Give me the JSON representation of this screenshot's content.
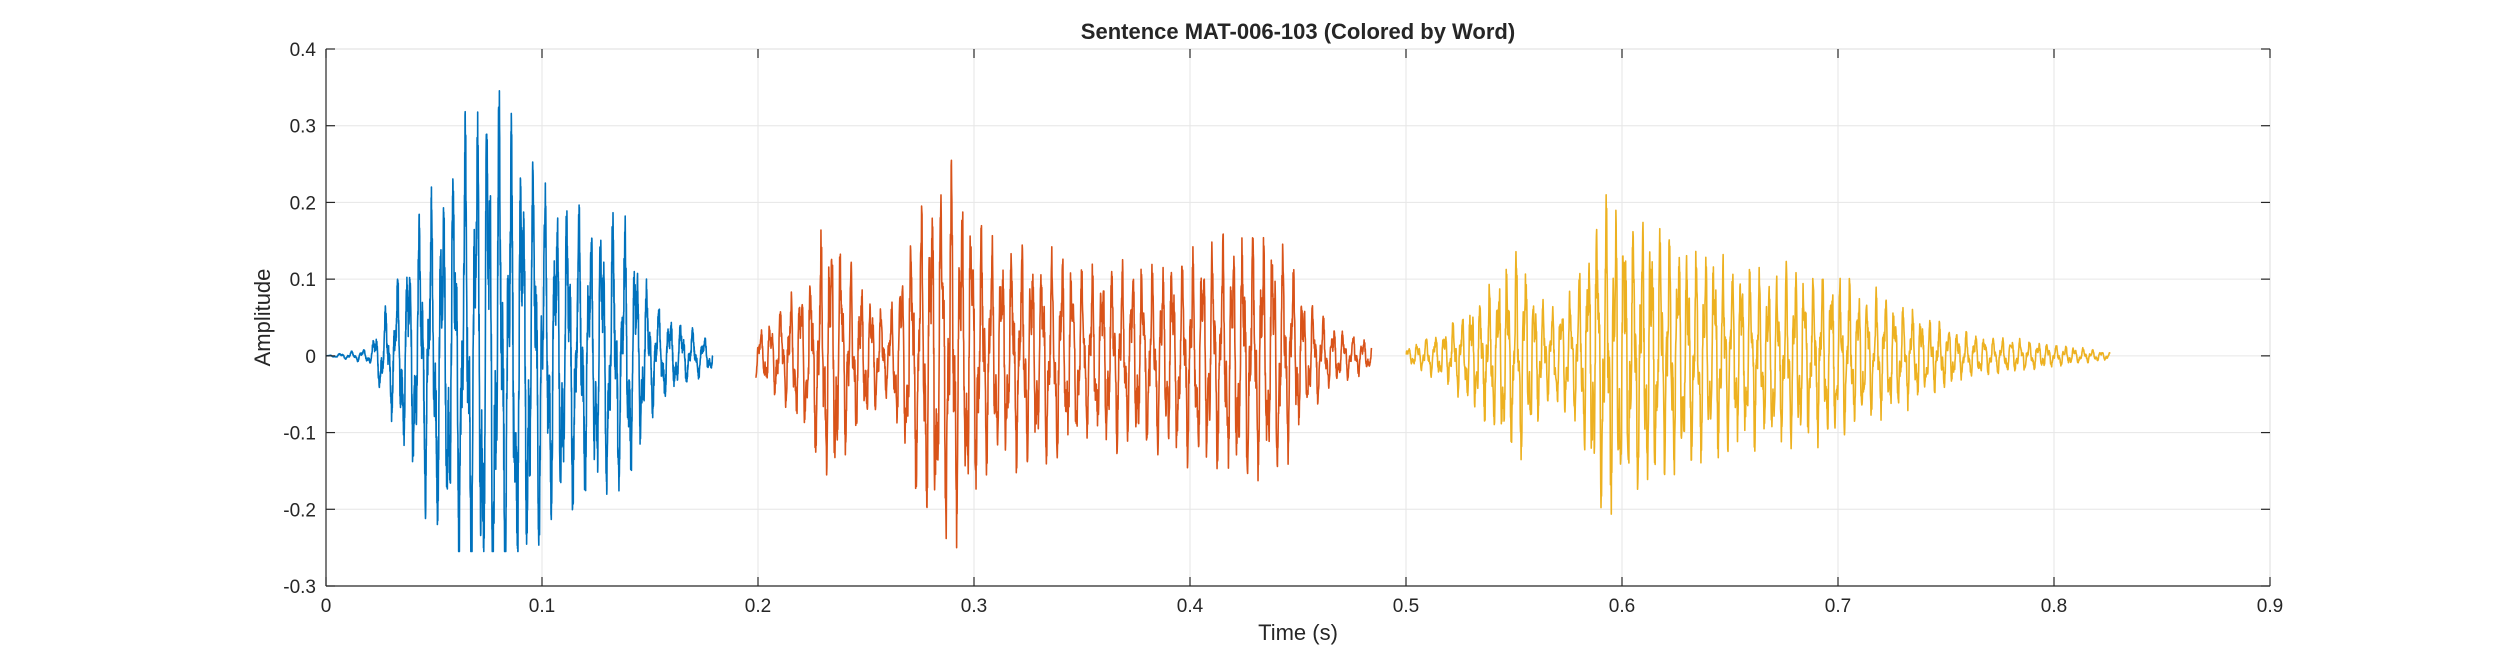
{
  "chart_data": {
    "type": "line",
    "title": "Sentence MAT-006-103 (Colored by Word)",
    "xlabel": "Time (s)",
    "ylabel": "Amplitude",
    "xlim": [
      0,
      0.9
    ],
    "ylim": [
      -0.3,
      0.4
    ],
    "xticks": [
      0,
      0.1,
      0.2,
      0.3,
      0.4,
      0.5,
      0.6,
      0.7,
      0.8,
      0.9
    ],
    "xtick_labels": [
      "0",
      "0.1",
      "0.2",
      "0.3",
      "0.4",
      "0.5",
      "0.6",
      "0.7",
      "0.8",
      "0.9"
    ],
    "yticks": [
      -0.3,
      -0.2,
      -0.1,
      0,
      0.1,
      0.2,
      0.3,
      0.4
    ],
    "ytick_labels": [
      "-0.3",
      "-0.2",
      "-0.1",
      "0",
      "0.1",
      "0.2",
      "0.3",
      "0.4"
    ],
    "grid": true,
    "series": [
      {
        "color": "#0072BD",
        "t_start": 0.0,
        "t_end": 0.179,
        "peak_max": 0.37,
        "peak_min": -0.255,
        "envelope": [
          [
            0.0,
            0.0
          ],
          [
            0.02,
            0.01
          ],
          [
            0.03,
            0.08
          ],
          [
            0.045,
            0.2
          ],
          [
            0.06,
            0.27
          ],
          [
            0.075,
            0.37
          ],
          [
            0.09,
            0.3
          ],
          [
            0.105,
            0.22
          ],
          [
            0.12,
            0.19
          ],
          [
            0.14,
            0.19
          ],
          [
            0.15,
            0.08
          ],
          [
            0.16,
            0.05
          ],
          [
            0.179,
            0.02
          ]
        ]
      },
      {
        "color": "#D95319",
        "t_start": 0.199,
        "t_end": 0.484,
        "peak_max": 0.255,
        "peak_min": -0.25,
        "envelope": [
          [
            0.199,
            0.03
          ],
          [
            0.21,
            0.06
          ],
          [
            0.225,
            0.12
          ],
          [
            0.233,
            0.19
          ],
          [
            0.245,
            0.11
          ],
          [
            0.26,
            0.05
          ],
          [
            0.27,
            0.16
          ],
          [
            0.28,
            0.24
          ],
          [
            0.292,
            0.255
          ],
          [
            0.305,
            0.16
          ],
          [
            0.33,
            0.14
          ],
          [
            0.36,
            0.12
          ],
          [
            0.39,
            0.13
          ],
          [
            0.42,
            0.16
          ],
          [
            0.44,
            0.17
          ],
          [
            0.452,
            0.09
          ],
          [
            0.465,
            0.04
          ],
          [
            0.484,
            0.02
          ]
        ]
      },
      {
        "color": "#EDB120",
        "t_start": 0.5,
        "t_end": 0.826,
        "peak_max": 0.21,
        "peak_min": -0.225,
        "envelope": [
          [
            0.5,
            0.01
          ],
          [
            0.52,
            0.04
          ],
          [
            0.54,
            0.1
          ],
          [
            0.553,
            0.15
          ],
          [
            0.565,
            0.06
          ],
          [
            0.578,
            0.09
          ],
          [
            0.59,
            0.21
          ],
          [
            0.61,
            0.19
          ],
          [
            0.63,
            0.15
          ],
          [
            0.66,
            0.12
          ],
          [
            0.7,
            0.11
          ],
          [
            0.73,
            0.07
          ],
          [
            0.76,
            0.03
          ],
          [
            0.79,
            0.02
          ],
          [
            0.826,
            0.005
          ]
        ]
      }
    ]
  }
}
